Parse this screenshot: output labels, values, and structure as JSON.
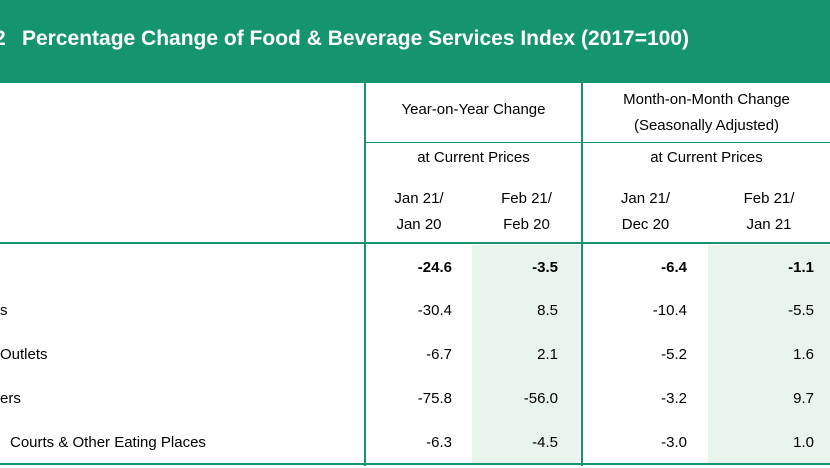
{
  "title": {
    "number": "2",
    "text": "Percentage Change of Food & Beverage Services Index (2017=100)"
  },
  "header": {
    "yoy": "Year-on-Year Change",
    "mom_line1": "Month-on-Month Change",
    "mom_line2": "(Seasonally Adjusted)",
    "yoy_prices": "at Current Prices",
    "mom_prices": "at Current Prices",
    "periods": [
      {
        "line1": "Jan 21/",
        "line2": "Jan 20"
      },
      {
        "line1": "Feb 21/",
        "line2": "Feb 20"
      },
      {
        "line1": "Jan 21/",
        "line2": "Dec 20"
      },
      {
        "line1": "Feb 21/",
        "line2": "Jan 21"
      }
    ]
  },
  "rows": [
    {
      "label": "",
      "values": [
        "-24.6",
        "-3.5",
        "-6.4",
        "-1.1"
      ]
    },
    {
      "label": "s",
      "values": [
        "-30.4",
        "8.5",
        "-10.4",
        "-5.5"
      ]
    },
    {
      "label": "Outlets",
      "values": [
        "-6.7",
        "2.1",
        "-5.2",
        "1.6"
      ]
    },
    {
      "label": "ers",
      "values": [
        "-75.8",
        "-56.0",
        "-3.2",
        "9.7"
      ]
    },
    {
      "label": "Courts & Other Eating Places",
      "values": [
        "-6.3",
        "-4.5",
        "-3.0",
        "1.0"
      ]
    }
  ],
  "colors": {
    "accent": "#15956f",
    "shade": "#e9f4ec"
  }
}
